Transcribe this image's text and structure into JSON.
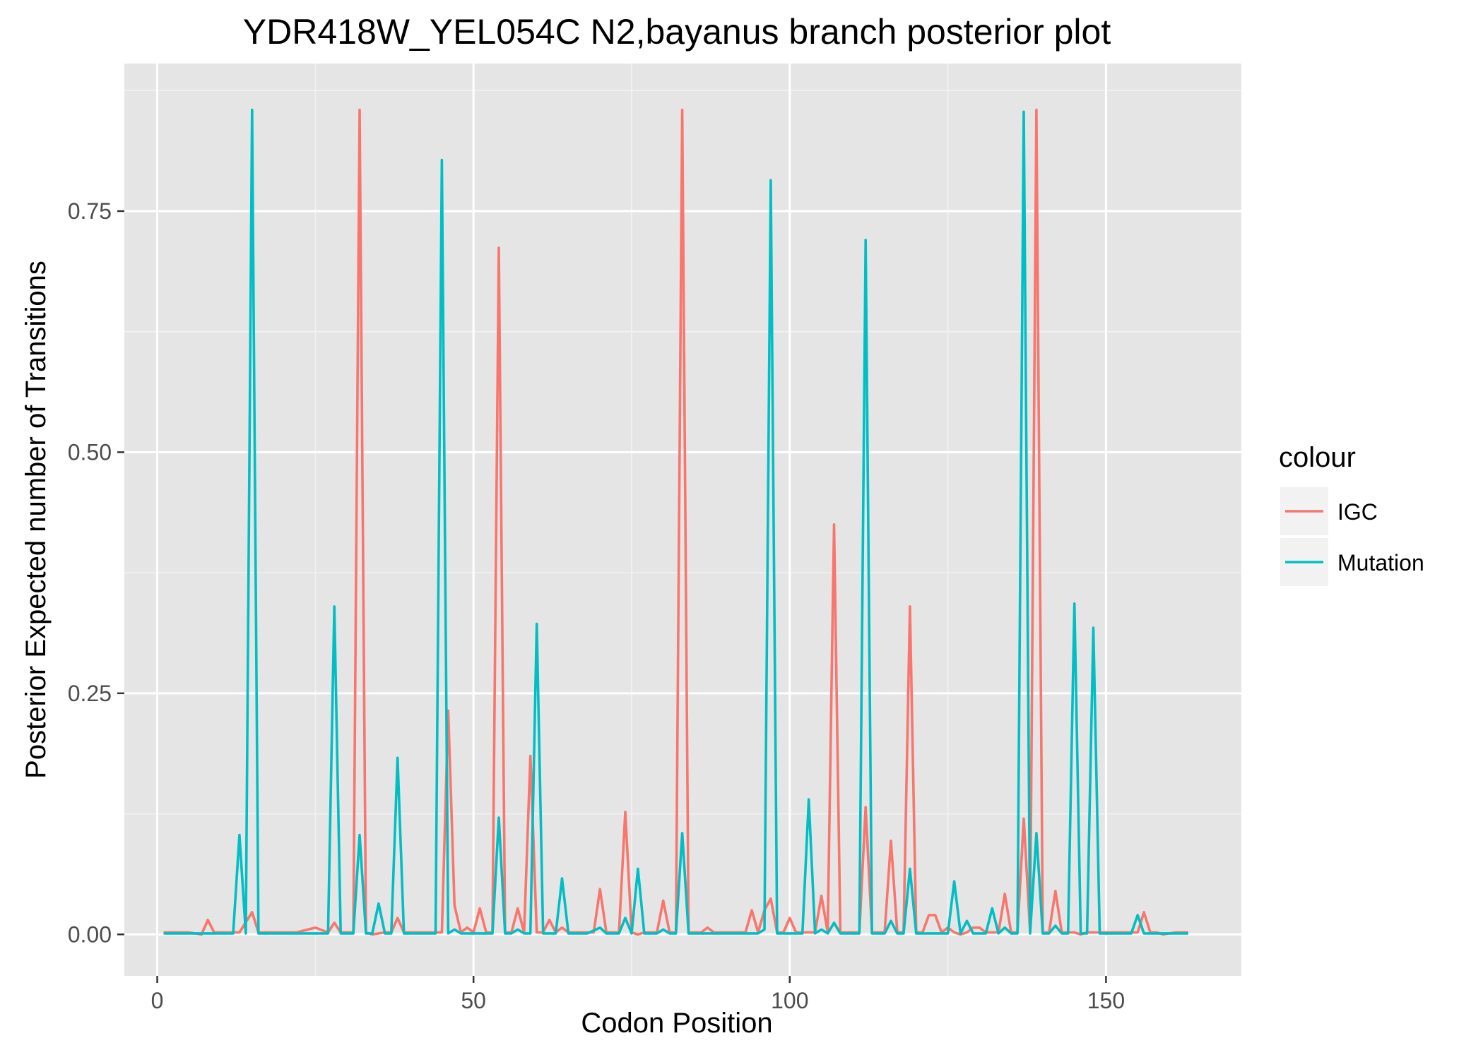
{
  "chart_data": {
    "type": "line",
    "title": "YDR418W_YEL054C N2,bayanus branch posterior plot",
    "xlabel": "Codon Position",
    "ylabel": "Posterior Expected number of Transitions",
    "xlim": [
      -5.2,
      171.4
    ],
    "ylim": [
      -0.043,
      0.903
    ],
    "x_ticks": [
      0,
      50,
      100,
      150
    ],
    "y_ticks": [
      0.0,
      0.25,
      0.5,
      0.75
    ],
    "x_tick_labels": [
      "0",
      "50",
      "100",
      "150"
    ],
    "y_tick_labels": [
      "0.00",
      "0.25",
      "0.50",
      "0.75"
    ],
    "grid": true,
    "panel_background": "#e5e5e5",
    "legend": {
      "title": "colour",
      "position": "right"
    },
    "series": [
      {
        "name": "IGC",
        "color": "#F8766D",
        "points": [
          [
            1,
            0.002
          ],
          [
            3,
            0.002
          ],
          [
            5,
            0.002
          ],
          [
            7,
            0.0
          ],
          [
            8,
            0.015
          ],
          [
            9,
            0.002
          ],
          [
            13,
            0.002
          ],
          [
            15,
            0.023
          ],
          [
            16,
            0.002
          ],
          [
            18,
            0.002
          ],
          [
            20,
            0.002
          ],
          [
            22,
            0.002
          ],
          [
            25,
            0.007
          ],
          [
            27,
            0.002
          ],
          [
            28,
            0.012
          ],
          [
            29,
            0.002
          ],
          [
            31,
            0.002
          ],
          [
            32,
            0.855
          ],
          [
            33,
            0.002
          ],
          [
            34,
            0.0
          ],
          [
            36,
            0.002
          ],
          [
            37,
            0.002
          ],
          [
            38,
            0.017
          ],
          [
            39,
            0.002
          ],
          [
            43,
            0.002
          ],
          [
            44,
            0.002
          ],
          [
            45,
            0.002
          ],
          [
            46,
            0.232
          ],
          [
            47,
            0.03
          ],
          [
            48,
            0.002
          ],
          [
            49,
            0.007
          ],
          [
            50,
            0.002
          ],
          [
            51,
            0.027
          ],
          [
            52,
            0.002
          ],
          [
            53,
            0.002
          ],
          [
            54,
            0.712
          ],
          [
            55,
            0.002
          ],
          [
            56,
            0.002
          ],
          [
            57,
            0.027
          ],
          [
            58,
            0.002
          ],
          [
            59,
            0.185
          ],
          [
            60,
            0.002
          ],
          [
            61,
            0.002
          ],
          [
            62,
            0.015
          ],
          [
            63,
            0.002
          ],
          [
            64,
            0.007
          ],
          [
            65,
            0.002
          ],
          [
            68,
            0.002
          ],
          [
            69,
            0.002
          ],
          [
            70,
            0.047
          ],
          [
            71,
            0.002
          ],
          [
            73,
            0.002
          ],
          [
            74,
            0.127
          ],
          [
            75,
            0.002
          ],
          [
            76,
            0.0
          ],
          [
            77,
            0.002
          ],
          [
            79,
            0.002
          ],
          [
            80,
            0.035
          ],
          [
            81,
            0.002
          ],
          [
            82,
            0.002
          ],
          [
            83,
            0.855
          ],
          [
            84,
            0.002
          ],
          [
            86,
            0.002
          ],
          [
            87,
            0.007
          ],
          [
            88,
            0.002
          ],
          [
            91,
            0.002
          ],
          [
            93,
            0.002
          ],
          [
            94,
            0.025
          ],
          [
            95,
            0.002
          ],
          [
            96,
            0.025
          ],
          [
            97,
            0.037
          ],
          [
            98,
            0.002
          ],
          [
            99,
            0.002
          ],
          [
            100,
            0.017
          ],
          [
            101,
            0.002
          ],
          [
            104,
            0.002
          ],
          [
            105,
            0.04
          ],
          [
            106,
            0.002
          ],
          [
            107,
            0.425
          ],
          [
            108,
            0.002
          ],
          [
            110,
            0.002
          ],
          [
            111,
            0.002
          ],
          [
            112,
            0.132
          ],
          [
            113,
            0.002
          ],
          [
            115,
            0.002
          ],
          [
            116,
            0.097
          ],
          [
            117,
            0.002
          ],
          [
            118,
            0.002
          ],
          [
            119,
            0.34
          ],
          [
            120,
            0.002
          ],
          [
            121,
            0.002
          ],
          [
            122,
            0.02
          ],
          [
            123,
            0.02
          ],
          [
            124,
            0.002
          ],
          [
            125,
            0.007
          ],
          [
            126,
            0.002
          ],
          [
            127,
            0.0
          ],
          [
            128,
            0.002
          ],
          [
            129,
            0.007
          ],
          [
            130,
            0.007
          ],
          [
            131,
            0.002
          ],
          [
            133,
            0.002
          ],
          [
            134,
            0.042
          ],
          [
            135,
            0.002
          ],
          [
            136,
            0.002
          ],
          [
            137,
            0.12
          ],
          [
            138,
            0.002
          ],
          [
            139,
            0.855
          ],
          [
            140,
            0.002
          ],
          [
            141,
            0.002
          ],
          [
            142,
            0.045
          ],
          [
            143,
            0.002
          ],
          [
            145,
            0.002
          ],
          [
            146,
            0.0
          ],
          [
            147,
            0.002
          ],
          [
            148,
            0.002
          ],
          [
            151,
            0.002
          ],
          [
            153,
            0.002
          ],
          [
            155,
            0.002
          ],
          [
            156,
            0.023
          ],
          [
            157,
            0.002
          ],
          [
            158,
            0.002
          ],
          [
            159,
            0.0
          ],
          [
            161,
            0.002
          ],
          [
            163,
            0.002
          ]
        ]
      },
      {
        "name": "Mutation",
        "color": "#00BFC4",
        "points": [
          [
            1,
            0.001
          ],
          [
            3,
            0.001
          ],
          [
            5,
            0.001
          ],
          [
            7,
            0.001
          ],
          [
            9,
            0.001
          ],
          [
            11,
            0.001
          ],
          [
            12,
            0.001
          ],
          [
            13,
            0.103
          ],
          [
            14,
            0.001
          ],
          [
            15,
            0.855
          ],
          [
            16,
            0.001
          ],
          [
            18,
            0.001
          ],
          [
            20,
            0.001
          ],
          [
            22,
            0.001
          ],
          [
            24,
            0.001
          ],
          [
            26,
            0.001
          ],
          [
            27,
            0.001
          ],
          [
            28,
            0.34
          ],
          [
            29,
            0.001
          ],
          [
            31,
            0.001
          ],
          [
            32,
            0.103
          ],
          [
            33,
            0.001
          ],
          [
            34,
            0.001
          ],
          [
            35,
            0.032
          ],
          [
            36,
            0.001
          ],
          [
            37,
            0.001
          ],
          [
            38,
            0.183
          ],
          [
            39,
            0.001
          ],
          [
            41,
            0.001
          ],
          [
            43,
            0.001
          ],
          [
            44,
            0.001
          ],
          [
            45,
            0.803
          ],
          [
            46,
            0.001
          ],
          [
            47,
            0.005
          ],
          [
            48,
            0.001
          ],
          [
            50,
            0.001
          ],
          [
            51,
            0.001
          ],
          [
            53,
            0.001
          ],
          [
            54,
            0.121
          ],
          [
            55,
            0.001
          ],
          [
            56,
            0.001
          ],
          [
            57,
            0.005
          ],
          [
            58,
            0.001
          ],
          [
            59,
            0.001
          ],
          [
            60,
            0.322
          ],
          [
            61,
            0.001
          ],
          [
            63,
            0.001
          ],
          [
            64,
            0.058
          ],
          [
            65,
            0.001
          ],
          [
            66,
            0.001
          ],
          [
            68,
            0.001
          ],
          [
            70,
            0.007
          ],
          [
            71,
            0.001
          ],
          [
            73,
            0.001
          ],
          [
            74,
            0.017
          ],
          [
            75,
            0.001
          ],
          [
            76,
            0.068
          ],
          [
            77,
            0.001
          ],
          [
            79,
            0.001
          ],
          [
            80,
            0.005
          ],
          [
            81,
            0.001
          ],
          [
            82,
            0.001
          ],
          [
            83,
            0.105
          ],
          [
            84,
            0.001
          ],
          [
            86,
            0.001
          ],
          [
            88,
            0.001
          ],
          [
            90,
            0.001
          ],
          [
            92,
            0.001
          ],
          [
            94,
            0.001
          ],
          [
            95,
            0.001
          ],
          [
            96,
            0.005
          ],
          [
            97,
            0.782
          ],
          [
            98,
            0.001
          ],
          [
            99,
            0.001
          ],
          [
            100,
            0.001
          ],
          [
            102,
            0.001
          ],
          [
            103,
            0.14
          ],
          [
            104,
            0.001
          ],
          [
            105,
            0.005
          ],
          [
            106,
            0.001
          ],
          [
            107,
            0.012
          ],
          [
            108,
            0.001
          ],
          [
            109,
            0.001
          ],
          [
            110,
            0.001
          ],
          [
            111,
            0.001
          ],
          [
            112,
            0.72
          ],
          [
            113,
            0.001
          ],
          [
            114,
            0.001
          ],
          [
            115,
            0.001
          ],
          [
            116,
            0.014
          ],
          [
            117,
            0.001
          ],
          [
            118,
            0.001
          ],
          [
            119,
            0.068
          ],
          [
            120,
            0.001
          ],
          [
            122,
            0.001
          ],
          [
            124,
            0.001
          ],
          [
            125,
            0.001
          ],
          [
            126,
            0.055
          ],
          [
            127,
            0.001
          ],
          [
            128,
            0.014
          ],
          [
            129,
            0.001
          ],
          [
            131,
            0.001
          ],
          [
            132,
            0.027
          ],
          [
            133,
            0.001
          ],
          [
            134,
            0.007
          ],
          [
            135,
            0.001
          ],
          [
            136,
            0.001
          ],
          [
            137,
            0.853
          ],
          [
            138,
            0.001
          ],
          [
            139,
            0.105
          ],
          [
            140,
            0.001
          ],
          [
            141,
            0.001
          ],
          [
            142,
            0.009
          ],
          [
            143,
            0.001
          ],
          [
            144,
            0.001
          ],
          [
            145,
            0.343
          ],
          [
            146,
            0.001
          ],
          [
            147,
            0.001
          ],
          [
            148,
            0.318
          ],
          [
            149,
            0.001
          ],
          [
            151,
            0.001
          ],
          [
            153,
            0.001
          ],
          [
            154,
            0.001
          ],
          [
            155,
            0.02
          ],
          [
            156,
            0.001
          ],
          [
            157,
            0.001
          ],
          [
            159,
            0.001
          ],
          [
            161,
            0.001
          ],
          [
            163,
            0.001
          ]
        ]
      }
    ]
  }
}
